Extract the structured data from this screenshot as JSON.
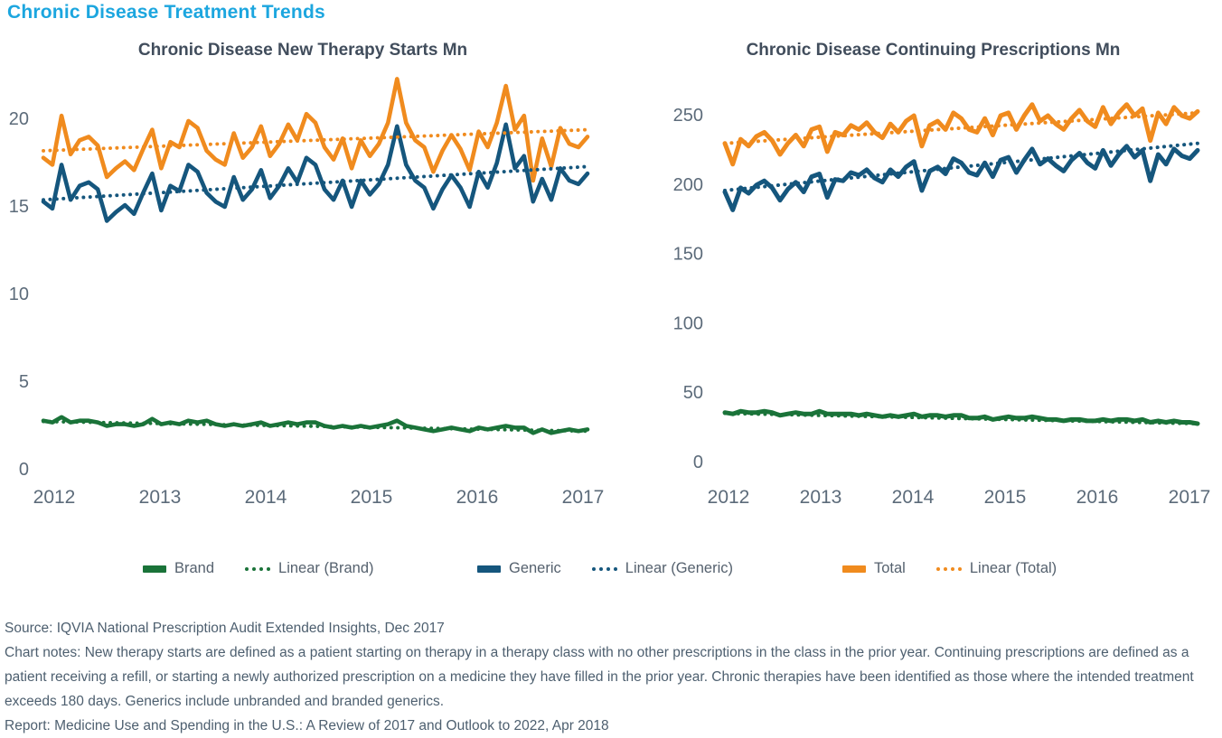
{
  "page": {
    "title": "Chronic Disease Treatment Trends"
  },
  "colors": {
    "title_accent": "#1CA6DF",
    "brand": "#1A7339",
    "generic": "#15567D",
    "total": "#F08B1E",
    "axis_text": "#5C6B7A",
    "chart_title_text": "#414D5C",
    "footer_text": "#4D5F6F"
  },
  "legend": [
    {
      "label": "Brand",
      "color": "#1A7339",
      "style": "solid"
    },
    {
      "label": "Linear (Brand)",
      "color": "#1A7339",
      "style": "dotted"
    },
    {
      "label": "Generic",
      "color": "#15567D",
      "style": "solid"
    },
    {
      "label": "Linear (Generic)",
      "color": "#15567D",
      "style": "dotted"
    },
    {
      "label": "Total",
      "color": "#F08B1E",
      "style": "solid"
    },
    {
      "label": "Linear (Total)",
      "color": "#F08B1E",
      "style": "dotted"
    }
  ],
  "chart_data": [
    {
      "type": "line",
      "title": "Chronic Disease New Therapy Starts Mn",
      "x_unit": "month",
      "x_range": "Jan 2012 - Jan 2017, monthly",
      "x_tick_labels": [
        "2012",
        "2013",
        "2014",
        "2015",
        "2016",
        "2017"
      ],
      "x_tick_positions": [
        0,
        12,
        24,
        36,
        48,
        60
      ],
      "y_ticks": [
        0,
        5,
        10,
        15,
        20
      ],
      "ylim": [
        0,
        22.5
      ],
      "grid": false,
      "legend_position": "bottom",
      "series": [
        {
          "name": "Total",
          "color": "#F08B1E",
          "style": "solid",
          "values": [
            17.8,
            17.4,
            20.2,
            18.0,
            18.8,
            19.0,
            18.5,
            16.7,
            17.2,
            17.6,
            17.1,
            18.3,
            19.4,
            17.2,
            18.7,
            18.4,
            19.9,
            19.5,
            18.2,
            17.7,
            17.4,
            19.2,
            17.8,
            18.4,
            19.6,
            17.9,
            18.6,
            19.7,
            18.8,
            20.3,
            19.8,
            18.4,
            17.7,
            18.9,
            17.2,
            18.8,
            17.9,
            18.6,
            19.8,
            22.3,
            19.8,
            18.8,
            18.4,
            17.0,
            18.2,
            19.1,
            18.3,
            17.1,
            19.3,
            18.4,
            19.8,
            21.9,
            19.4,
            20.2,
            16.5,
            18.9,
            17.3,
            19.5,
            18.6,
            18.4,
            19.0
          ]
        },
        {
          "name": "Generic",
          "color": "#15567D",
          "style": "solid",
          "values": [
            15.3,
            14.9,
            17.4,
            15.4,
            16.2,
            16.4,
            16.0,
            14.2,
            14.7,
            15.1,
            14.6,
            15.8,
            16.9,
            14.8,
            16.2,
            15.9,
            17.4,
            17.0,
            15.8,
            15.3,
            15.0,
            16.7,
            15.4,
            16.0,
            17.1,
            15.5,
            16.2,
            17.2,
            16.4,
            17.8,
            17.4,
            16.0,
            15.4,
            16.5,
            15.0,
            16.5,
            15.7,
            16.3,
            17.4,
            19.6,
            17.4,
            16.5,
            16.1,
            14.9,
            16.0,
            16.8,
            16.1,
            15.0,
            17.0,
            16.1,
            17.5,
            19.7,
            17.2,
            17.9,
            15.3,
            16.6,
            15.4,
            17.2,
            16.5,
            16.3,
            16.9
          ]
        },
        {
          "name": "Brand",
          "color": "#1A7339",
          "style": "solid",
          "values": [
            2.8,
            2.7,
            3.0,
            2.7,
            2.8,
            2.8,
            2.7,
            2.5,
            2.6,
            2.6,
            2.5,
            2.6,
            2.9,
            2.6,
            2.7,
            2.6,
            2.8,
            2.7,
            2.8,
            2.6,
            2.5,
            2.6,
            2.5,
            2.6,
            2.7,
            2.5,
            2.6,
            2.7,
            2.6,
            2.7,
            2.7,
            2.5,
            2.4,
            2.5,
            2.4,
            2.5,
            2.4,
            2.5,
            2.6,
            2.8,
            2.5,
            2.4,
            2.3,
            2.2,
            2.3,
            2.4,
            2.3,
            2.2,
            2.4,
            2.3,
            2.4,
            2.5,
            2.4,
            2.4,
            2.1,
            2.3,
            2.1,
            2.2,
            2.3,
            2.2,
            2.3
          ]
        },
        {
          "name": "Linear (Total)",
          "color": "#F08B1E",
          "style": "dotted",
          "values": [
            18.2,
            19.4
          ]
        },
        {
          "name": "Linear (Generic)",
          "color": "#15567D",
          "style": "dotted",
          "values": [
            15.4,
            17.3
          ]
        },
        {
          "name": "Linear (Brand)",
          "color": "#1A7339",
          "style": "dotted",
          "values": [
            2.75,
            2.2
          ]
        }
      ]
    },
    {
      "type": "line",
      "title": "Chronic Disease Continuing Prescriptions Mn",
      "x_unit": "month",
      "x_range": "Jan 2012 - Jan 2017, monthly",
      "x_tick_labels": [
        "2012",
        "2013",
        "2014",
        "2015",
        "2016",
        "2017"
      ],
      "x_tick_positions": [
        0,
        12,
        24,
        36,
        48,
        60
      ],
      "y_ticks": [
        0,
        50,
        100,
        150,
        200,
        250
      ],
      "ylim": [
        0,
        270
      ],
      "grid": false,
      "legend_position": "bottom",
      "series": [
        {
          "name": "Total",
          "color": "#F08B1E",
          "style": "solid",
          "values": [
            230,
            215,
            233,
            228,
            235,
            238,
            232,
            222,
            230,
            236,
            228,
            240,
            242,
            224,
            238,
            236,
            243,
            240,
            245,
            238,
            234,
            244,
            238,
            246,
            250,
            228,
            243,
            246,
            240,
            252,
            248,
            240,
            238,
            248,
            236,
            250,
            252,
            240,
            250,
            258,
            246,
            250,
            244,
            240,
            248,
            254,
            246,
            242,
            256,
            244,
            252,
            258,
            250,
            255,
            232,
            252,
            244,
            256,
            250,
            248,
            253
          ]
        },
        {
          "name": "Generic",
          "color": "#15567D",
          "style": "solid",
          "values": [
            195,
            182,
            198,
            194,
            200,
            203,
            198,
            189,
            197,
            202,
            195,
            206,
            208,
            191,
            204,
            203,
            209,
            207,
            211,
            205,
            202,
            211,
            206,
            213,
            217,
            196,
            210,
            213,
            208,
            219,
            216,
            209,
            207,
            216,
            206,
            218,
            220,
            209,
            218,
            226,
            215,
            219,
            214,
            210,
            218,
            223,
            216,
            212,
            225,
            214,
            222,
            228,
            220,
            225,
            203,
            222,
            215,
            226,
            221,
            219,
            225
          ]
        },
        {
          "name": "Brand",
          "color": "#1A7339",
          "style": "solid",
          "values": [
            36,
            35,
            37,
            36,
            36,
            37,
            36,
            34,
            35,
            36,
            35,
            35,
            37,
            35,
            35,
            35,
            35,
            34,
            35,
            34,
            33,
            34,
            33,
            34,
            35,
            33,
            34,
            34,
            33,
            34,
            34,
            32,
            32,
            33,
            31,
            32,
            33,
            32,
            32,
            33,
            32,
            31,
            31,
            30,
            31,
            31,
            30,
            30,
            31,
            30,
            31,
            31,
            30,
            31,
            29,
            30,
            29,
            30,
            29,
            29,
            28
          ]
        },
        {
          "name": "Linear (Total)",
          "color": "#F08B1E",
          "style": "dotted",
          "values": [
            230,
            252
          ]
        },
        {
          "name": "Linear (Generic)",
          "color": "#15567D",
          "style": "dotted",
          "values": [
            196,
            230
          ]
        },
        {
          "name": "Linear (Brand)",
          "color": "#1A7339",
          "style": "dotted",
          "values": [
            35.5,
            28
          ]
        }
      ]
    }
  ],
  "footer": {
    "source": "Source: IQVIA National Prescription Audit Extended Insights, Dec 2017",
    "notes": "Chart notes: New therapy starts are defined as a patient starting on therapy in a therapy class with no other prescriptions in the class in the prior year. Continuing prescriptions are defined as a patient receiving a refill, or starting a newly authorized prescription on a medicine they have filled in the prior year. Chronic therapies have been identified as those where the intended treatment exceeds 180 days. Generics include unbranded and branded generics.",
    "report": "Report: Medicine Use and Spending in the U.S.: A Review of 2017 and Outlook to 2022, Apr 2018"
  }
}
